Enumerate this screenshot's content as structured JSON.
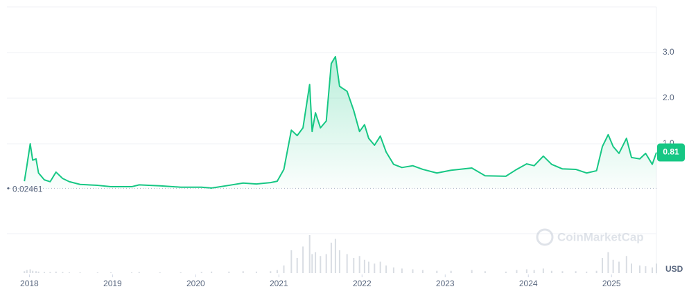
{
  "chart_data": {
    "type": "line",
    "x": [
      2017.94,
      2017.97,
      2018.01,
      2018.04,
      2018.08,
      2018.11,
      2018.18,
      2018.25,
      2018.32,
      2018.4,
      2018.48,
      2018.61,
      2018.82,
      2018.98,
      2019.23,
      2019.32,
      2019.57,
      2019.82,
      2020.07,
      2020.19,
      2020.4,
      2020.57,
      2020.73,
      2020.9,
      2020.98,
      2021.06,
      2021.15,
      2021.22,
      2021.29,
      2021.37,
      2021.4,
      2021.44,
      2021.5,
      2021.57,
      2021.63,
      2021.68,
      2021.73,
      2021.82,
      2021.9,
      2021.97,
      2022.03,
      2022.08,
      2022.15,
      2022.22,
      2022.29,
      2022.38,
      2022.48,
      2022.61,
      2022.73,
      2022.9,
      2023.07,
      2023.32,
      2023.48,
      2023.73,
      2023.86,
      2023.98,
      2024.07,
      2024.18,
      2024.28,
      2024.41,
      2024.57,
      2024.7,
      2024.82,
      2024.89,
      2024.96,
      2025.02,
      2025.09,
      2025.18,
      2025.24,
      2025.34,
      2025.41,
      2025.49,
      2025.54
    ],
    "series": [
      {
        "color": "#16c784",
        "values": [
          0.18,
          0.52,
          1.0,
          0.64,
          0.67,
          0.36,
          0.21,
          0.17,
          0.38,
          0.24,
          0.17,
          0.11,
          0.09,
          0.06,
          0.06,
          0.1,
          0.08,
          0.05,
          0.05,
          0.03,
          0.09,
          0.14,
          0.12,
          0.15,
          0.18,
          0.44,
          1.3,
          1.18,
          1.35,
          2.3,
          1.27,
          1.68,
          1.35,
          1.5,
          2.76,
          2.91,
          2.26,
          2.15,
          1.73,
          1.27,
          1.42,
          1.12,
          0.97,
          1.17,
          0.82,
          0.55,
          0.48,
          0.52,
          0.44,
          0.36,
          0.42,
          0.47,
          0.3,
          0.29,
          0.44,
          0.56,
          0.52,
          0.73,
          0.55,
          0.45,
          0.44,
          0.36,
          0.41,
          0.94,
          1.2,
          0.94,
          0.79,
          1.12,
          0.7,
          0.67,
          0.79,
          0.55,
          0.81
        ]
      },
      {
        "color": "#d9dde3",
        "axis": "volume",
        "values": [
          5,
          8,
          10,
          6,
          5,
          4,
          3,
          3,
          4,
          3,
          2,
          2,
          2,
          2,
          2,
          3,
          2,
          2,
          3,
          4,
          4,
          5,
          4,
          5,
          8,
          20,
          60,
          40,
          70,
          100,
          50,
          55,
          45,
          50,
          80,
          90,
          60,
          50,
          40,
          45,
          35,
          30,
          25,
          30,
          20,
          15,
          12,
          10,
          8,
          6,
          6,
          8,
          5,
          4,
          8,
          10,
          8,
          12,
          6,
          5,
          5,
          4,
          6,
          40,
          55,
          35,
          30,
          45,
          25,
          20,
          18,
          15,
          25
        ]
      }
    ],
    "xlim": [
      2017.73,
      2025.54
    ],
    "xticks": [
      2018,
      2019,
      2020,
      2021,
      2022,
      2023,
      2024,
      2025
    ],
    "ylim": [
      -1,
      4
    ],
    "yticks": [
      {
        "value": 1,
        "label": "1.0"
      },
      {
        "value": 2,
        "label": "2.0"
      },
      {
        "value": 3,
        "label": "3.0"
      }
    ],
    "volume_lim": [
      0,
      100
    ],
    "baseline": {
      "value": 0.02461,
      "label": "0.02461"
    },
    "last_price": {
      "value": 0.81,
      "label": "0.81"
    },
    "currency": "USD",
    "watermark": "CoinMarketCap",
    "grid": true
  }
}
